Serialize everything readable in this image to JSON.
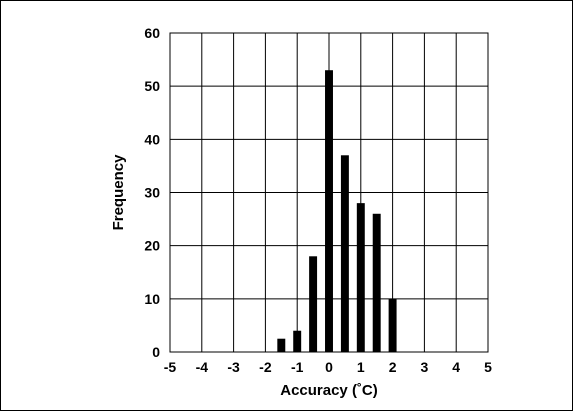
{
  "chart_data": {
    "type": "bar",
    "title": "",
    "xlabel": "Accuracy (˚C)",
    "ylabel": "Frequency",
    "xlim": [
      -5,
      5
    ],
    "ylim": [
      0,
      60
    ],
    "xticks": [
      -5,
      -4,
      -3,
      -2,
      -1,
      0,
      1,
      2,
      3,
      4,
      5
    ],
    "yticks": [
      0,
      10,
      20,
      30,
      40,
      50,
      60
    ],
    "grid": true,
    "bar_width": 0.25,
    "x": [
      -1.5,
      -1.0,
      -0.5,
      0.0,
      0.5,
      1.0,
      1.5,
      2.0
    ],
    "values": [
      2.5,
      4,
      18,
      53,
      37,
      28,
      26,
      10
    ]
  }
}
